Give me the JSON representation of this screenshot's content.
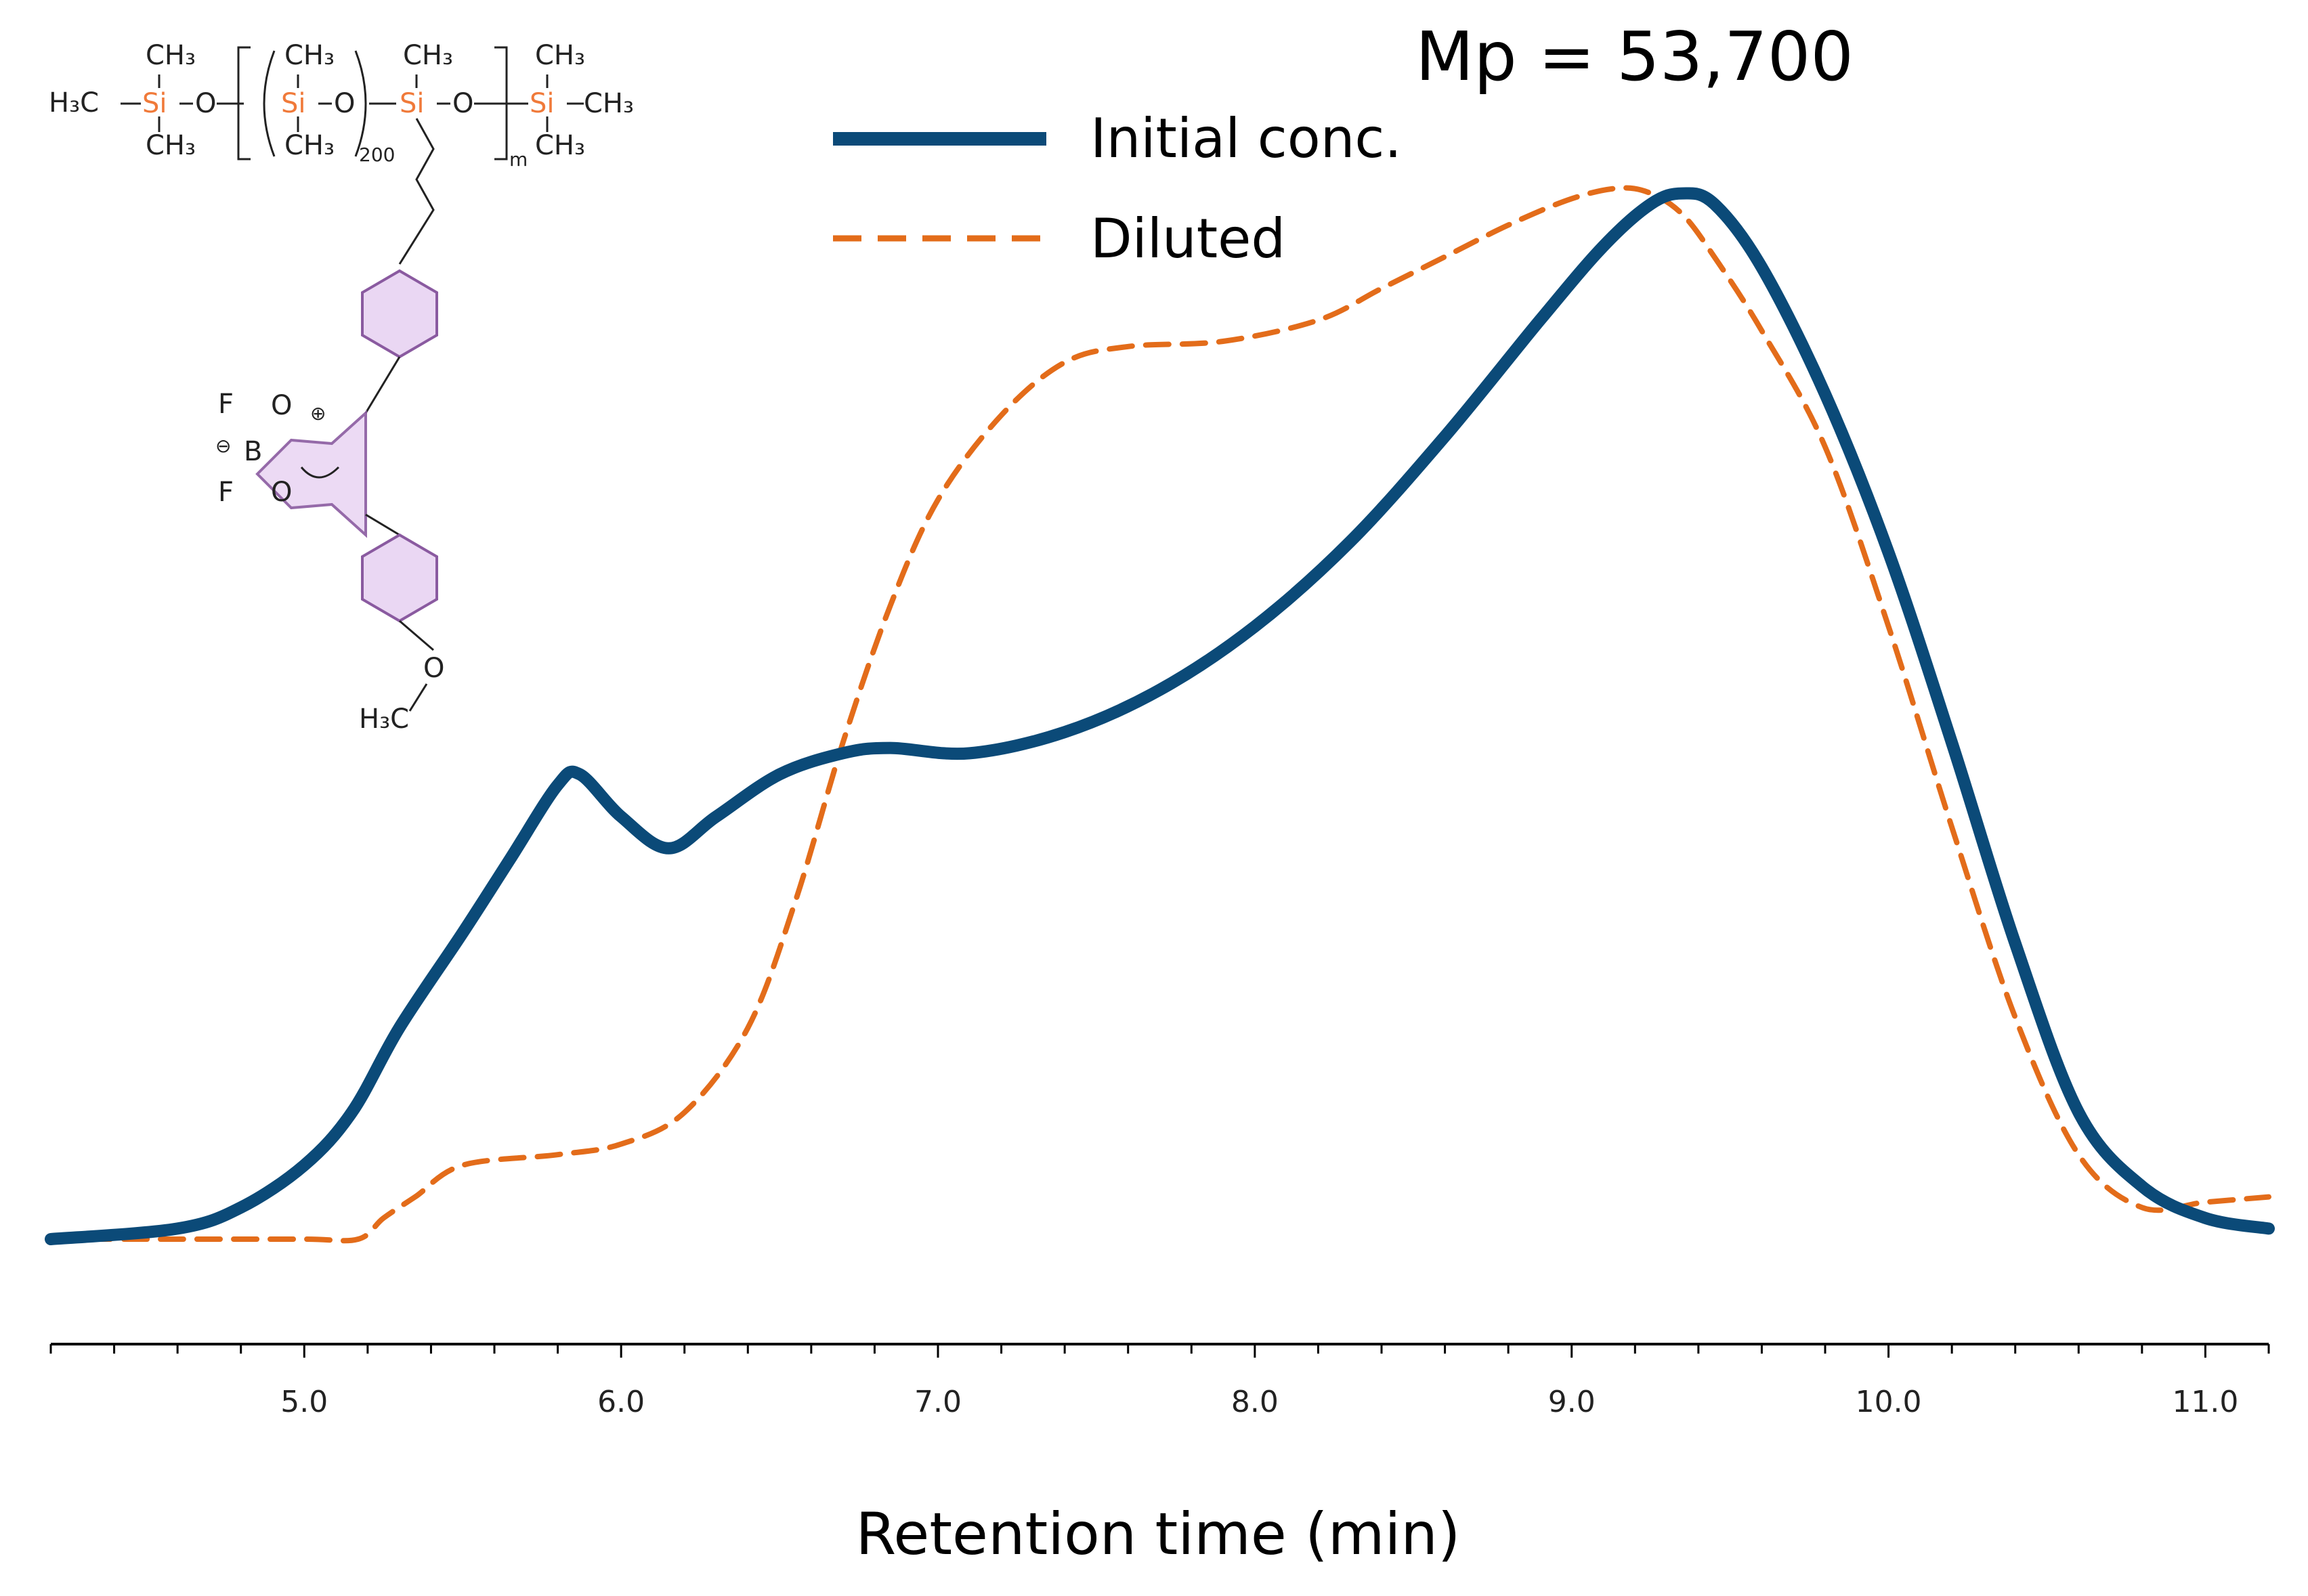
{
  "chart_data": {
    "type": "line",
    "title": "",
    "annotation": "Mp = 53,700",
    "xlabel": "Retention time (min)",
    "ylabel": "",
    "xlim": [
      4.2,
      11.2
    ],
    "ylim": [
      -0.05,
      1.05
    ],
    "x_ticks": [
      "5.0",
      "6.0",
      "7.0",
      "8.0",
      "9.0",
      "10.0",
      "11.0"
    ],
    "x_tick_values": [
      5.0,
      6.0,
      7.0,
      8.0,
      9.0,
      10.0,
      11.0
    ],
    "minor_tick_step": 0.2,
    "legend_position": "top-center",
    "series": [
      {
        "name": "Initial conc.",
        "style": "solid",
        "color": "#0b4a78",
        "x": [
          4.2,
          4.6,
          4.8,
          5.0,
          5.15,
          5.3,
          5.5,
          5.65,
          5.8,
          5.87,
          6.0,
          6.15,
          6.3,
          6.5,
          6.7,
          6.85,
          7.1,
          7.4,
          7.7,
          8.0,
          8.3,
          8.6,
          8.9,
          9.1,
          9.25,
          9.35,
          9.45,
          9.6,
          9.8,
          10.0,
          10.2,
          10.4,
          10.6,
          10.8,
          11.0,
          11.2
        ],
        "values": [
          0.0,
          0.01,
          0.03,
          0.07,
          0.12,
          0.2,
          0.29,
          0.36,
          0.43,
          0.44,
          0.4,
          0.37,
          0.4,
          0.44,
          0.46,
          0.465,
          0.46,
          0.48,
          0.52,
          0.58,
          0.66,
          0.76,
          0.87,
          0.94,
          0.98,
          0.99,
          0.98,
          0.92,
          0.8,
          0.65,
          0.47,
          0.28,
          0.12,
          0.05,
          0.02,
          0.01
        ]
      },
      {
        "name": "Diluted",
        "style": "dashed",
        "color": "#e36c1a",
        "x": [
          4.2,
          4.6,
          5.0,
          5.17,
          5.25,
          5.35,
          5.5,
          5.8,
          6.0,
          6.2,
          6.4,
          6.55,
          6.7,
          6.85,
          7.0,
          7.2,
          7.4,
          7.6,
          7.9,
          8.2,
          8.4,
          8.6,
          8.8,
          9.0,
          9.15,
          9.25,
          9.35,
          9.45,
          9.6,
          9.8,
          10.0,
          10.2,
          10.4,
          10.6,
          10.8,
          11.0,
          11.2
        ],
        "values": [
          0.0,
          0.0,
          0.0,
          0.0,
          0.02,
          0.04,
          0.07,
          0.08,
          0.09,
          0.12,
          0.2,
          0.32,
          0.47,
          0.6,
          0.7,
          0.78,
          0.83,
          0.845,
          0.85,
          0.87,
          0.9,
          0.93,
          0.96,
          0.985,
          0.995,
          0.99,
          0.97,
          0.93,
          0.86,
          0.75,
          0.58,
          0.39,
          0.21,
          0.08,
          0.03,
          0.035,
          0.04
        ]
      }
    ]
  },
  "chemical_structure": {
    "end_group_left": "H₃C–Si–O",
    "methyl_labels": [
      "CH₃",
      "CH₃",
      "CH₃",
      "CH₃",
      "CH₃",
      "CH₃",
      "CH₃",
      "CH₃"
    ],
    "h3c_left": "H₃C",
    "si_label": "Si",
    "o_label": "O",
    "repeat_200": "200",
    "repeat_m": "m",
    "boron": "B",
    "fluorine": "F",
    "minus": "⊖",
    "plus": "⊕",
    "h3c_bottom": "H₃C"
  },
  "colors": {
    "initial": "#0b4a78",
    "diluted": "#e36c1a",
    "silicon": "#f07a3a",
    "ring_fill": "#ead7f3",
    "ring_stroke": "#8a5aa0",
    "axis": "#000000"
  }
}
